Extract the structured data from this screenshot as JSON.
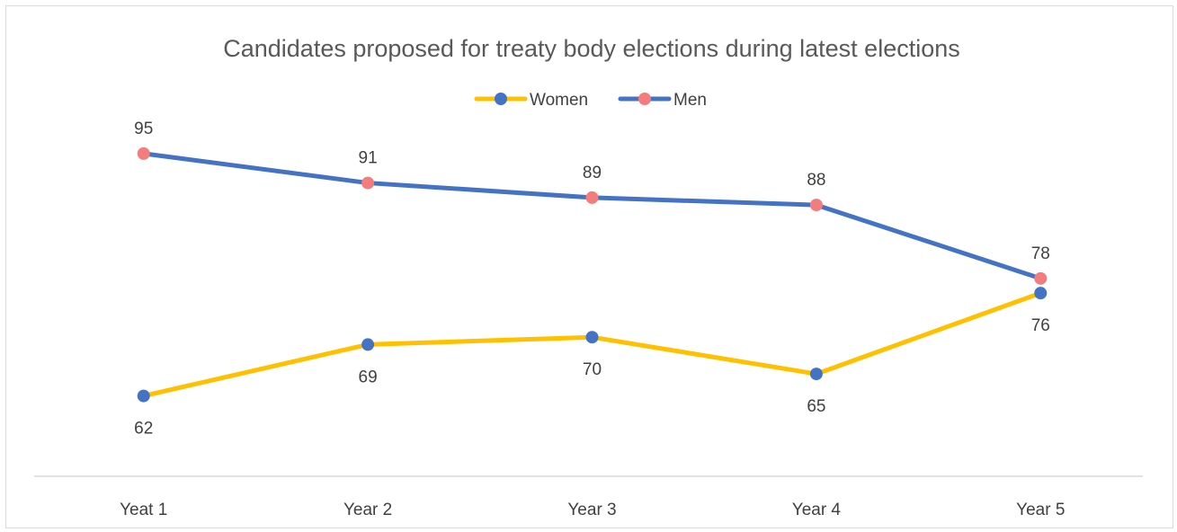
{
  "chart_data": {
    "type": "line",
    "title": "Candidates proposed for treaty body elections during latest elections",
    "categories": [
      "Yeat 1",
      "Year 2",
      "Year 3",
      "Year 4",
      "Year 5"
    ],
    "series": [
      {
        "name": "Women",
        "values": [
          62,
          69,
          70,
          65,
          76
        ],
        "line_color": "#FFC000",
        "marker_color": "#4472C4",
        "label_position": "below"
      },
      {
        "name": "Men",
        "values": [
          95,
          91,
          89,
          88,
          78
        ],
        "line_color": "#4472C4",
        "marker_color": "#F47C7C",
        "label_position": "above"
      }
    ],
    "xlabel": "",
    "ylabel": "",
    "ylim": [
      54,
      100
    ],
    "grid": false,
    "legend": "top-center",
    "data_labels": true
  }
}
